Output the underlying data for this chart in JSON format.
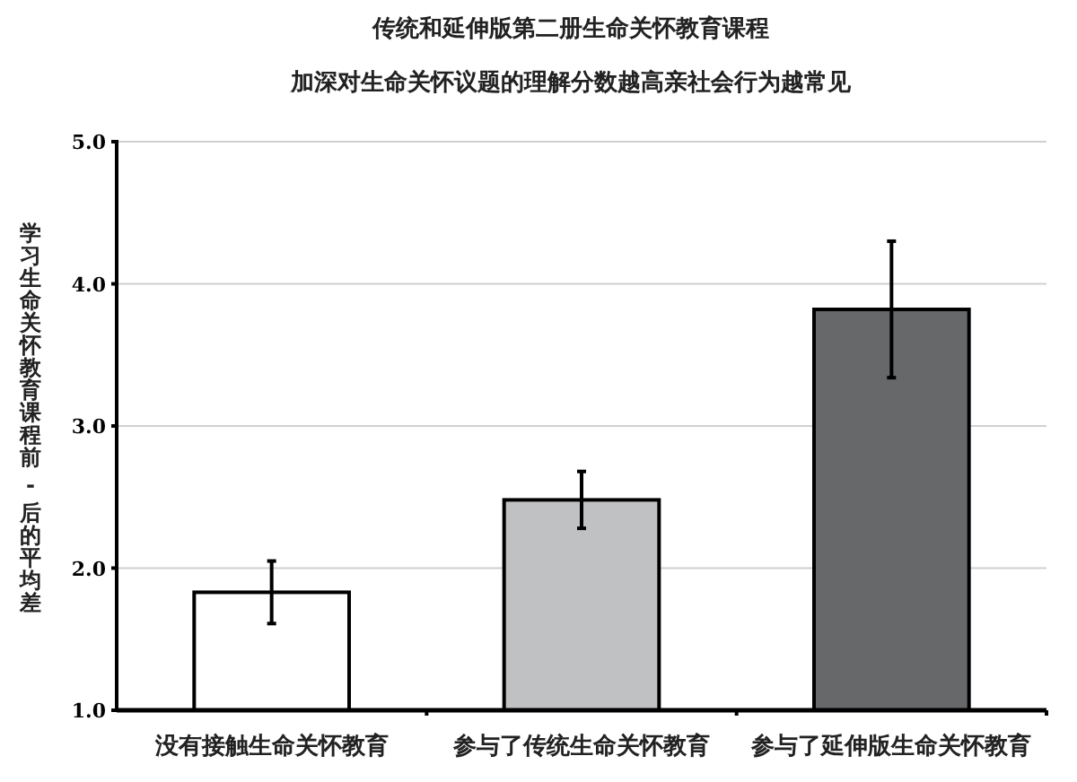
{
  "chart_data": {
    "type": "bar",
    "title": "传统和延伸版第二册生命关怀教育课程",
    "subtitle": "加深对生命关怀议题的理解分数越高亲社会行为越常见",
    "ylabel": "学习生命关怀教育课程前 - 后的平均差",
    "categories": [
      "没有接触生命关怀教育",
      "参与了传统生命关怀教育",
      "参与了延伸版生命关怀教育"
    ],
    "values": [
      1.83,
      2.48,
      3.82
    ],
    "errors": [
      0.22,
      0.2,
      0.48
    ],
    "colors": [
      "#ffffff",
      "#c0c1c3",
      "#67686a"
    ],
    "ylim": [
      1,
      5
    ],
    "yticks": [
      {
        "value": 1,
        "label": "1.0"
      },
      {
        "value": 2,
        "label": "2.0"
      },
      {
        "value": 3,
        "label": "3.0"
      },
      {
        "value": 4,
        "label": "4.0"
      },
      {
        "value": 5,
        "label": "5.0"
      }
    ],
    "grid": "y"
  }
}
